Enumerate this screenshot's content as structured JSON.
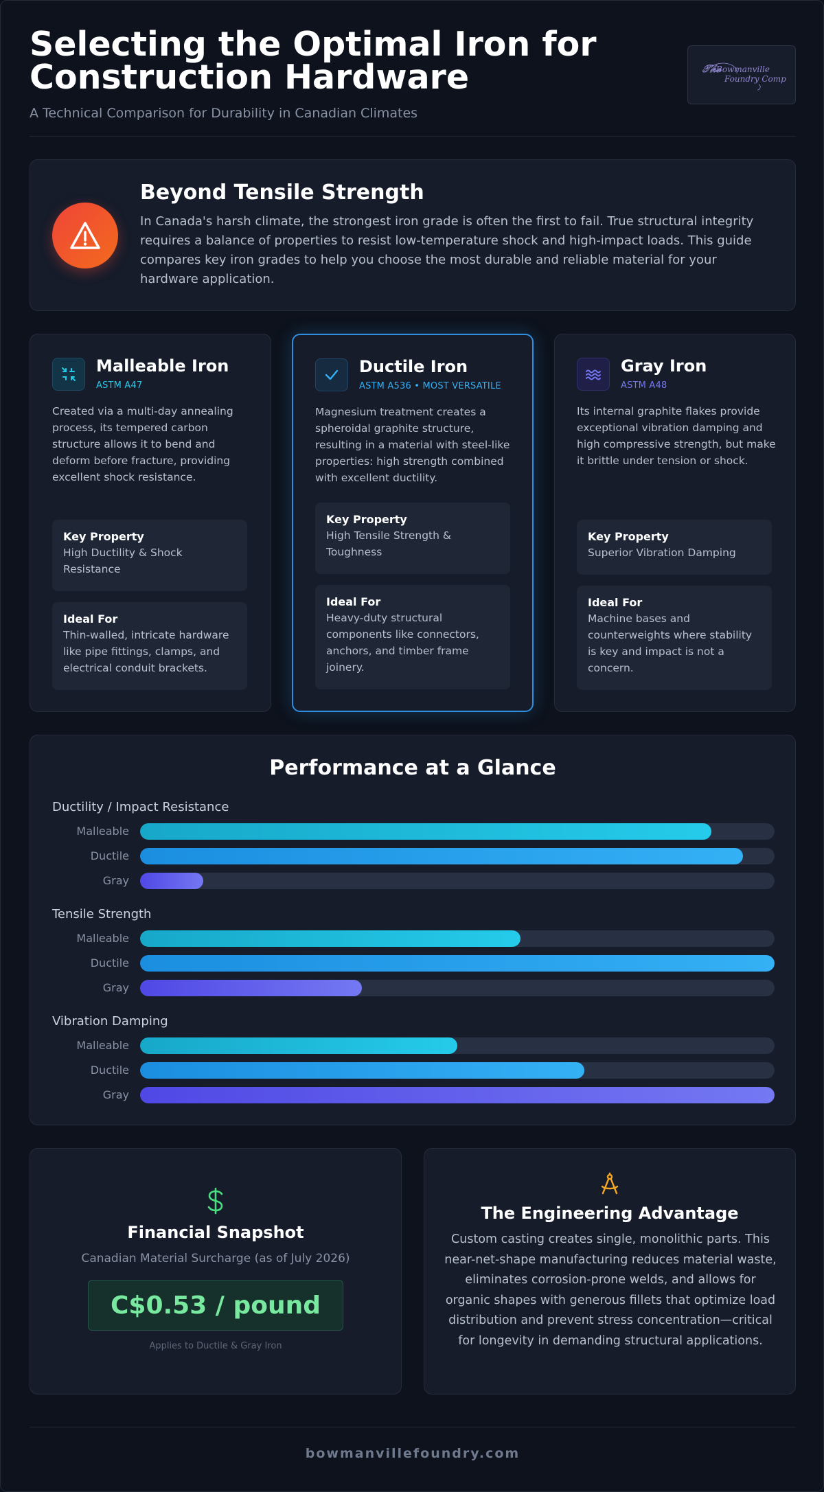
{
  "header": {
    "title": "Selecting the Optimal Iron for Construction Hardware",
    "subtitle": "A Technical Comparison for Durability in Canadian Climates",
    "logo_text": "Bowmanville Foundry Company"
  },
  "intro": {
    "icon": "warning-triangle-icon",
    "title": "Beyond Tensile Strength",
    "text": "In Canada's harsh climate, the strongest iron grade is often the first to fail. True structural integrity requires a balance of properties to resist low-temperature shock and high-impact loads. This guide compares key iron grades to help you choose the most durable and reliable material for your hardware application."
  },
  "irons": [
    {
      "name": "Malleable Iron",
      "spec": "ASTM A47",
      "icon": "compress-arrows-icon",
      "description": "Created via a multi-day annealing process, its tempered carbon structure allows it to bend and deform before fracture, providing excellent shock resistance.",
      "key_property_label": "Key Property",
      "key_property": "High Ductility & Shock Resistance",
      "ideal_for_label": "Ideal For",
      "ideal_for": "Thin-walled, intricate hardware like pipe fittings, clamps, and electrical conduit brackets."
    },
    {
      "name": "Ductile Iron",
      "spec": "ASTM A536 • MOST VERSATILE",
      "icon": "check-icon",
      "description": "Magnesium treatment creates a spheroidal graphite structure, resulting in a material with steel-like properties: high strength combined with excellent ductility.",
      "key_property_label": "Key Property",
      "key_property": "High Tensile Strength & Toughness",
      "ideal_for_label": "Ideal For",
      "ideal_for": "Heavy-duty structural components like connectors, anchors, and timber frame joinery."
    },
    {
      "name": "Gray Iron",
      "spec": "ASTM A48",
      "icon": "wave-icon",
      "description": "Its internal graphite flakes provide exceptional vibration damping and high compressive strength, but make it brittle under tension or shock.",
      "key_property_label": "Key Property",
      "key_property": "Superior Vibration Damping",
      "ideal_for_label": "Ideal For",
      "ideal_for": "Machine bases and counterweights where stability is key and impact is not a concern."
    }
  ],
  "performance": {
    "title": "Performance at a Glance",
    "metrics": [
      {
        "label": "Ductility / Impact Resistance",
        "bars": [
          {
            "name": "Malleable",
            "value": 0.9
          },
          {
            "name": "Ductile",
            "value": 0.95
          },
          {
            "name": "Gray",
            "value": 0.1
          }
        ]
      },
      {
        "label": "Tensile Strength",
        "bars": [
          {
            "name": "Malleable",
            "value": 0.6
          },
          {
            "name": "Ductile",
            "value": 1.0
          },
          {
            "name": "Gray",
            "value": 0.35
          }
        ]
      },
      {
        "label": "Vibration Damping",
        "bars": [
          {
            "name": "Malleable",
            "value": 0.5
          },
          {
            "name": "Ductile",
            "value": 0.7
          },
          {
            "name": "Gray",
            "value": 1.0
          }
        ]
      }
    ]
  },
  "financial": {
    "icon": "dollar-icon",
    "title": "Financial Snapshot",
    "subtitle": "Canadian Material Surcharge (as of July 2026)",
    "price": "C$0.53 / pound",
    "note": "Applies to Ductile & Gray Iron"
  },
  "engineering": {
    "icon": "compass-icon",
    "title": "The Engineering Advantage",
    "text": "Custom casting creates single, monolithic parts. This near-net-shape manufacturing reduces material waste, eliminates corrosion-prone welds, and allows for organic shapes with generous fillets that optimize load distribution and prevent stress concentration—critical for longevity in demanding structural applications."
  },
  "footer": {
    "url": "bowmanvillefoundry.com"
  },
  "colors": {
    "malleable": "#25cbea",
    "ductile": "#34b0f5",
    "gray": "#7478f2",
    "price": "#79e9a0",
    "warning": "#f04438"
  }
}
